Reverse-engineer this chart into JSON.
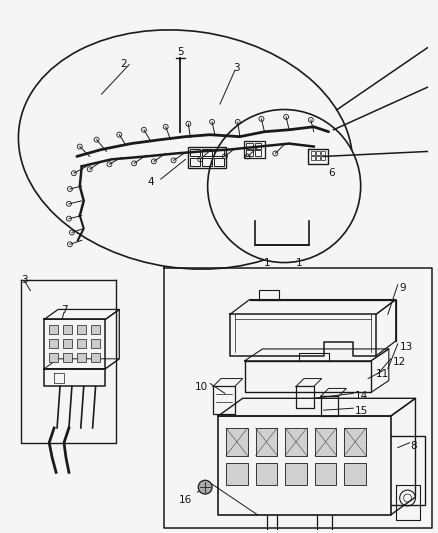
{
  "bg_color": "#f5f5f5",
  "line_color": "#1a1a1a",
  "label_color": "#111111",
  "fig_width": 4.38,
  "fig_height": 5.33,
  "dpi": 100
}
